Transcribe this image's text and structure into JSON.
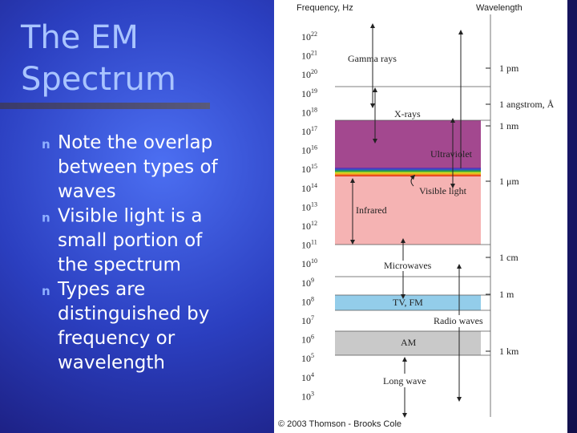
{
  "slide": {
    "title_lines": [
      "The EM",
      "Spectrum"
    ],
    "bullets": [
      [
        "Note the overlap",
        "between types of",
        "waves"
      ],
      [
        "Visible light is a",
        "small portion of",
        "the spectrum"
      ],
      [
        "Types are",
        "distinguished by",
        "frequency or",
        "wavelength"
      ]
    ],
    "bullet_symbol": "n"
  },
  "figure": {
    "frequency_header": "Frequency, Hz",
    "wavelength_header": "Wavelength",
    "frequency_labels": [
      {
        "base": "10",
        "exponent": "22"
      },
      {
        "base": "10",
        "exponent": "21"
      },
      {
        "base": "10",
        "exponent": "20"
      },
      {
        "base": "10",
        "exponent": "19"
      },
      {
        "base": "10",
        "exponent": "18"
      },
      {
        "base": "10",
        "exponent": "17"
      },
      {
        "base": "10",
        "exponent": "16"
      },
      {
        "base": "10",
        "exponent": "15"
      },
      {
        "base": "10",
        "exponent": "14"
      },
      {
        "base": "10",
        "exponent": "13"
      },
      {
        "base": "10",
        "exponent": "12"
      },
      {
        "base": "10",
        "exponent": "11"
      },
      {
        "base": "10",
        "exponent": "10"
      },
      {
        "base": "10",
        "exponent": "9"
      },
      {
        "base": "10",
        "exponent": "8"
      },
      {
        "base": "10",
        "exponent": "7"
      },
      {
        "base": "10",
        "exponent": "6"
      },
      {
        "base": "10",
        "exponent": "5"
      },
      {
        "base": "10",
        "exponent": "4"
      },
      {
        "base": "10",
        "exponent": "3"
      }
    ],
    "wavelength_labels": [
      "1 pm",
      "1 angstrom, Å",
      "1 nm",
      "1 μm",
      "1 cm",
      "1 m",
      "1 km"
    ],
    "bands": [
      "Gamma rays",
      "X-rays",
      "Ultraviolet",
      "Visible light",
      "Infrared",
      "Microwaves",
      "TV, FM",
      "Radio waves",
      "AM",
      "Long wave"
    ],
    "credit": "© 2003 Thomson - Brooks Cole"
  }
}
